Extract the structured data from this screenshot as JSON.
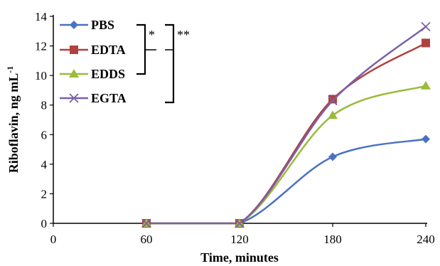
{
  "chart_data": {
    "type": "line",
    "xlabel": "Time, minutes",
    "ylabel_main": "Riboflavin, ng mL",
    "ylabel_superscript": "-1",
    "xlim": [
      0,
      240
    ],
    "ylim": [
      0,
      14
    ],
    "xticks": [
      "0",
      "60",
      "120",
      "180",
      "240"
    ],
    "yticks": [
      "0",
      "2",
      "4",
      "6",
      "8",
      "10",
      "12",
      "14"
    ],
    "x": [
      60,
      120,
      180,
      240
    ],
    "series": [
      {
        "name": "PBS",
        "values": [
          0,
          0,
          4.5,
          5.7
        ],
        "color": "#4a72c4",
        "marker": "diamond"
      },
      {
        "name": "EDTA",
        "values": [
          0,
          0,
          8.4,
          12.2
        ],
        "color": "#b0413e",
        "marker": "square"
      },
      {
        "name": "EDDS",
        "values": [
          0,
          0,
          7.3,
          9.3
        ],
        "color": "#9bbb3a",
        "marker": "triangle"
      },
      {
        "name": "EGTA",
        "values": [
          0,
          0,
          8.3,
          13.3
        ],
        "color": "#7b5fa8",
        "marker": "x"
      }
    ],
    "significance": [
      "*",
      "**"
    ],
    "legend_position": "top-left",
    "grid": false
  }
}
